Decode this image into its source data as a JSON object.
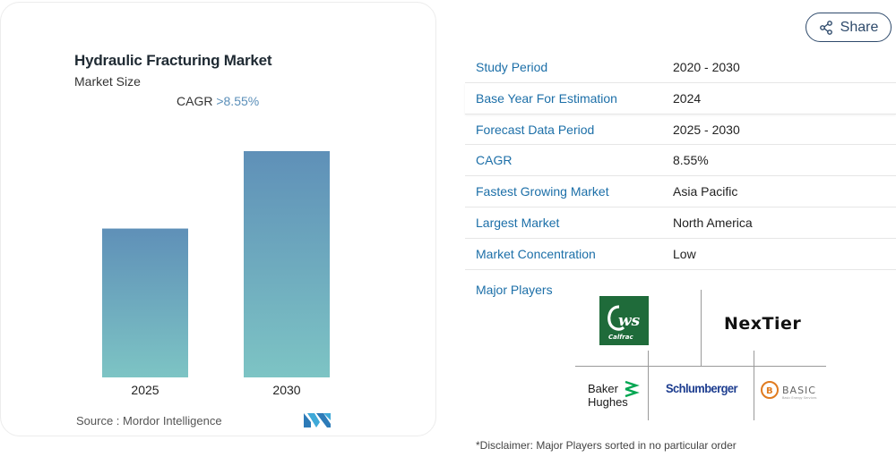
{
  "chart_card": {
    "title": "Hydraulic Fracturing Market",
    "subtitle": "Market Size",
    "cagr_label": "CAGR",
    "cagr_value": ">8.55%",
    "source": "Source :  Mordor Intelligence"
  },
  "chart_data": {
    "type": "bar",
    "categories": [
      "2025",
      "2030"
    ],
    "values": [
      1.0,
      1.52
    ],
    "title": "Hydraulic Fracturing Market",
    "xlabel": "",
    "ylabel": "",
    "ylim": [
      0,
      1.55
    ],
    "grid": false,
    "bar_gradient": {
      "top": "#5f90b8",
      "bottom": "#7dc4c4"
    }
  },
  "share": {
    "label": "Share",
    "icon": "share-icon",
    "color": "#2e4a6b"
  },
  "info_rows": [
    {
      "key": "Study Period",
      "value": "2020 - 2030"
    },
    {
      "key": "Base Year For Estimation",
      "value": "2024"
    },
    {
      "key": "Forecast Data Period",
      "value": "2025 - 2030"
    },
    {
      "key": "CAGR",
      "value": "8.55%"
    },
    {
      "key": "Fastest Growing Market",
      "value": "Asia Pacific"
    },
    {
      "key": "Largest Market",
      "value": "North America"
    },
    {
      "key": "Market Concentration",
      "value": "Low"
    }
  ],
  "players": {
    "label": "Major Players",
    "logos": [
      "Calfrac",
      "NexTier",
      "Baker Hughes",
      "Schlumberger",
      "Basic Energy Services"
    ]
  },
  "disclaimer": "*Disclaimer: Major Players sorted in no particular order",
  "colors": {
    "link_blue": "#1c6fa8",
    "calfrac_green": "#1f6b3a"
  }
}
